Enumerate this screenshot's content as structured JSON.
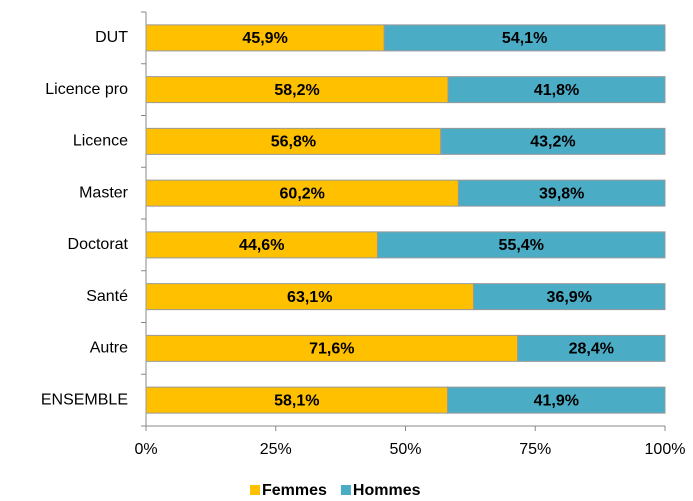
{
  "chart_data": {
    "type": "bar",
    "orientation": "horizontal",
    "stacked": true,
    "categories": [
      "DUT",
      "Licence pro",
      "Licence",
      "Master",
      "Doctorat",
      "Santé",
      "Autre",
      "ENSEMBLE"
    ],
    "series": [
      {
        "name": "Femmes",
        "color": "#FFC000",
        "values": [
          45.9,
          58.2,
          56.8,
          60.2,
          44.6,
          63.1,
          71.6,
          58.1
        ],
        "value_labels": [
          "45,9%",
          "58,2%",
          "56,8%",
          "60,2%",
          "44,6%",
          "63,1%",
          "71,6%",
          "58,1%"
        ]
      },
      {
        "name": "Hommes",
        "color": "#4BACC6",
        "values": [
          54.1,
          41.8,
          43.2,
          39.8,
          55.4,
          36.9,
          28.4,
          41.9
        ],
        "value_labels": [
          "54,1%",
          "41,8%",
          "43,2%",
          "39,8%",
          "55,4%",
          "36,9%",
          "28,4%",
          "41,9%"
        ]
      }
    ],
    "xlim": [
      0,
      100
    ],
    "xticks": [
      {
        "value": 0,
        "label": "0%"
      },
      {
        "value": 25,
        "label": "25%"
      },
      {
        "value": 50,
        "label": "50%"
      },
      {
        "value": 75,
        "label": "75%"
      },
      {
        "value": 100,
        "label": "100%"
      }
    ],
    "legend": "bottom"
  }
}
